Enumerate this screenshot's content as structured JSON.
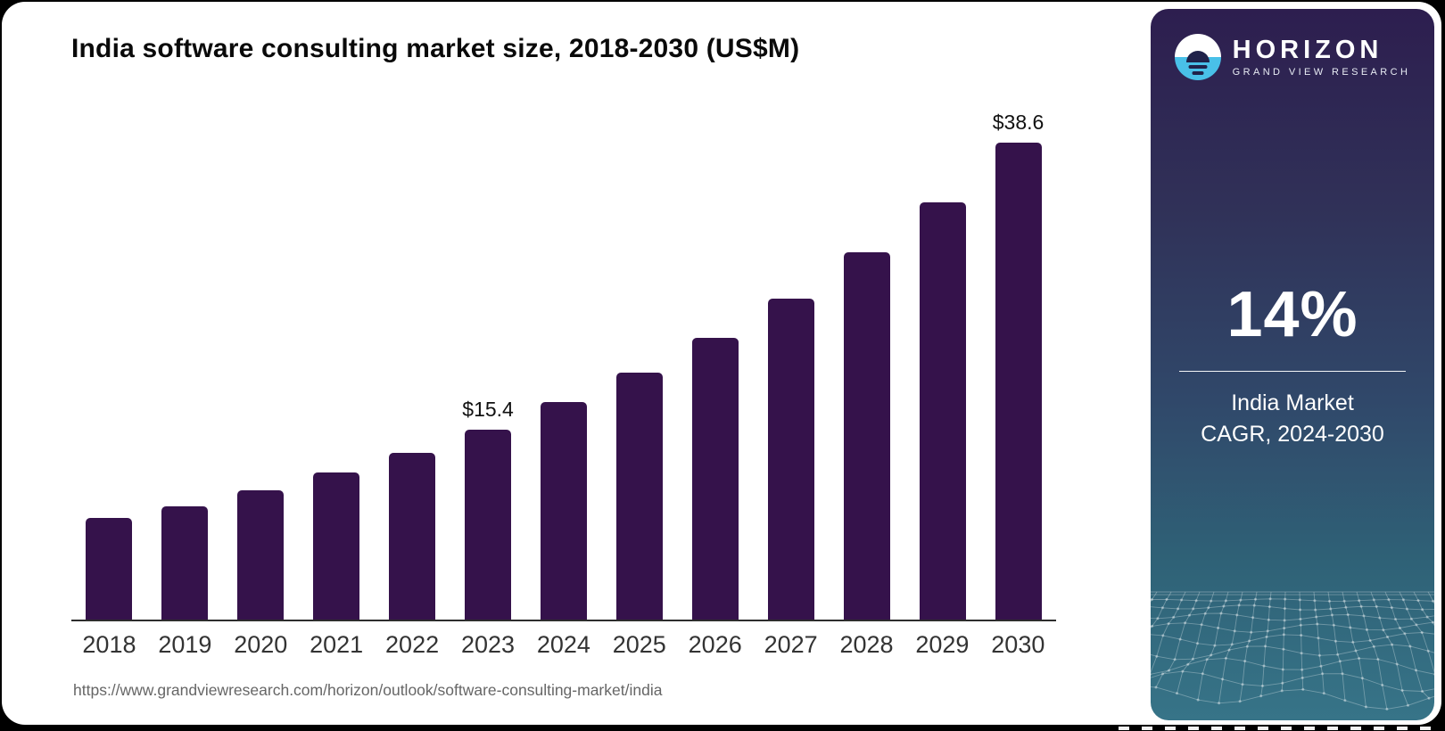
{
  "page": {
    "title": "India software consulting market size, 2018-2030 (US$M)",
    "source_url": "https://www.grandviewresearch.com/horizon/outlook/software-consulting-market/india"
  },
  "chart_data": {
    "type": "bar",
    "title": "India software consulting market size, 2018-2030 (US$M)",
    "unit": "US$M",
    "categories": [
      "2018",
      "2019",
      "2020",
      "2021",
      "2022",
      "2023",
      "2024",
      "2025",
      "2026",
      "2027",
      "2028",
      "2029",
      "2030"
    ],
    "values": [
      8.2,
      9.2,
      10.5,
      11.9,
      13.5,
      15.4,
      17.6,
      20.0,
      22.8,
      26.0,
      29.7,
      33.8,
      38.6
    ],
    "data_labels": [
      "",
      "",
      "",
      "",
      "",
      "$15.4",
      "",
      "",
      "",
      "",
      "",
      "",
      "$38.6"
    ],
    "ylim": [
      0,
      40
    ],
    "grid": false,
    "legend": "none",
    "bar_color": "#35124B",
    "axis_color": "#2d2d2d"
  },
  "sidebar": {
    "brand": {
      "name": "HORIZON",
      "tagline": "GRAND VIEW RESEARCH",
      "icon": "horizon-sun-logo",
      "logo_blue": "#49C0E8",
      "logo_dark": "#20224A"
    },
    "stat": {
      "value": "14%",
      "line1": "India Market",
      "line2": "CAGR, 2024-2030"
    },
    "colors": {
      "top": "#2D1E4F",
      "middle": "#30486A",
      "bottom": "#377488",
      "mesh_line": "rgba(255,255,255,0.28)"
    }
  }
}
